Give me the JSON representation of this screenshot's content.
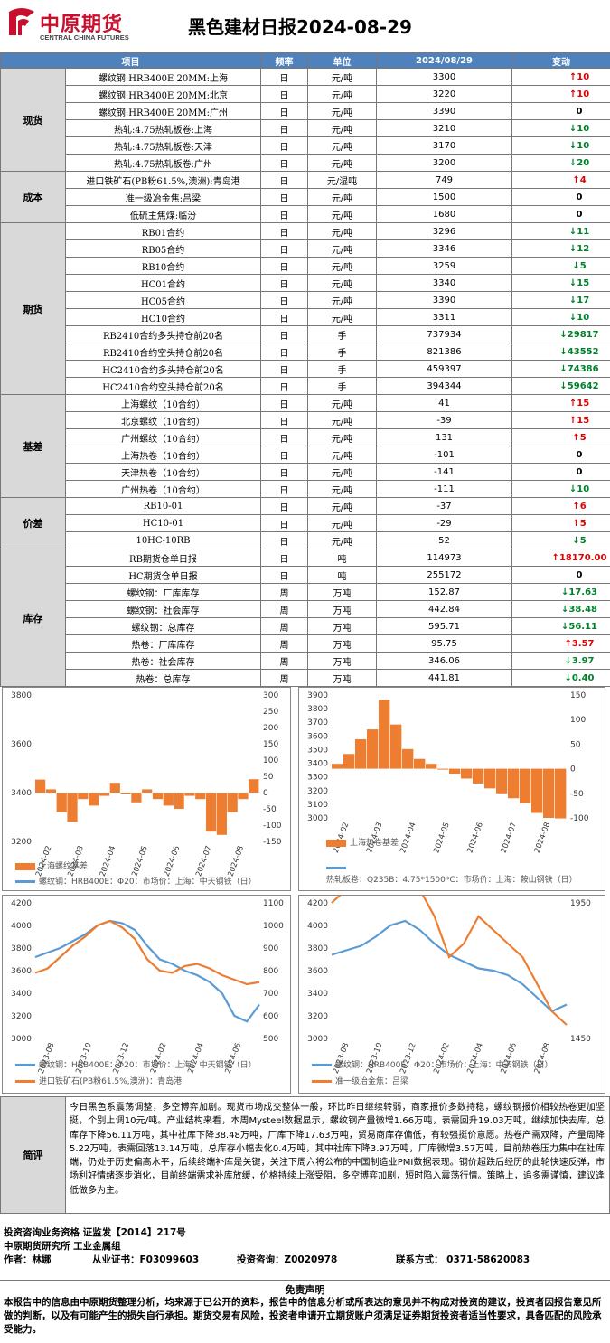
{
  "header": {
    "logo_cn": "中原期货",
    "logo_en": "CENTRAL CHINA FUTURES",
    "title": "黑色建材日报2024-08-29"
  },
  "columns": [
    "项目",
    "频率",
    "单位",
    "2024/08/29",
    "变动"
  ],
  "groups": [
    {
      "cat": "现货",
      "rows": [
        {
          "item": "螺纹钢:HRB400E 20MM:上海",
          "freq": "日",
          "unit": "元/吨",
          "value": "3300",
          "dir": "up",
          "chg": "10"
        },
        {
          "item": "螺纹钢:HRB400E 20MM:北京",
          "freq": "日",
          "unit": "元/吨",
          "value": "3220",
          "dir": "up",
          "chg": "10"
        },
        {
          "item": "螺纹钢:HRB400E 20MM:广州",
          "freq": "日",
          "unit": "元/吨",
          "value": "3390",
          "dir": "none",
          "chg": "0"
        },
        {
          "item": "热轧:4.75热轧板卷:上海",
          "freq": "日",
          "unit": "元/吨",
          "value": "3210",
          "dir": "dn",
          "chg": "10"
        },
        {
          "item": "热轧:4.75热轧板卷:天津",
          "freq": "日",
          "unit": "元/吨",
          "value": "3170",
          "dir": "dn",
          "chg": "10"
        },
        {
          "item": "热轧:4.75热轧板卷:广州",
          "freq": "日",
          "unit": "元/吨",
          "value": "3200",
          "dir": "dn",
          "chg": "20"
        }
      ]
    },
    {
      "cat": "成本",
      "rows": [
        {
          "item": "进口铁矿石(PB粉61.5%,澳洲):青岛港",
          "freq": "日",
          "unit": "元/湿吨",
          "value": "749",
          "dir": "up",
          "chg": "4"
        },
        {
          "item": "准一级冶金焦:吕梁",
          "freq": "日",
          "unit": "元/吨",
          "value": "1500",
          "dir": "none",
          "chg": "0"
        },
        {
          "item": "低硫主焦煤:临汾",
          "freq": "日",
          "unit": "元/吨",
          "value": "1680",
          "dir": "none",
          "chg": "0"
        }
      ]
    },
    {
      "cat": "期货",
      "rows": [
        {
          "item": "RB01合约",
          "freq": "日",
          "unit": "元/吨",
          "value": "3296",
          "dir": "dn",
          "chg": "11"
        },
        {
          "item": "RB05合约",
          "freq": "日",
          "unit": "元/吨",
          "value": "3346",
          "dir": "dn",
          "chg": "12"
        },
        {
          "item": "RB10合约",
          "freq": "日",
          "unit": "元/吨",
          "value": "3259",
          "dir": "dn",
          "chg": "5"
        },
        {
          "item": "HC01合约",
          "freq": "日",
          "unit": "元/吨",
          "value": "3340",
          "dir": "dn",
          "chg": "15"
        },
        {
          "item": "HC05合约",
          "freq": "日",
          "unit": "元/吨",
          "value": "3390",
          "dir": "dn",
          "chg": "17"
        },
        {
          "item": "HC10合约",
          "freq": "日",
          "unit": "元/吨",
          "value": "3311",
          "dir": "dn",
          "chg": "10"
        },
        {
          "item": "RB2410合约多头持仓前20名",
          "freq": "日",
          "unit": "手",
          "value": "737934",
          "dir": "dn",
          "chg": "29817"
        },
        {
          "item": "RB2410合约空头持仓前20名",
          "freq": "日",
          "unit": "手",
          "value": "821386",
          "dir": "dn",
          "chg": "43552"
        },
        {
          "item": "HC2410合约多头持仓前20名",
          "freq": "日",
          "unit": "手",
          "value": "459397",
          "dir": "dn",
          "chg": "74386"
        },
        {
          "item": "HC2410合约空头持仓前20名",
          "freq": "日",
          "unit": "手",
          "value": "394344",
          "dir": "dn",
          "chg": "59642"
        }
      ]
    },
    {
      "cat": "基差",
      "rows": [
        {
          "item": "上海螺纹（10合约）",
          "freq": "日",
          "unit": "元/吨",
          "value": "41",
          "dir": "up",
          "chg": "15"
        },
        {
          "item": "北京螺纹（10合约）",
          "freq": "日",
          "unit": "元/吨",
          "value": "-39",
          "dir": "up",
          "chg": "15"
        },
        {
          "item": "广州螺纹（10合约）",
          "freq": "日",
          "unit": "元/吨",
          "value": "131",
          "dir": "up",
          "chg": "5"
        },
        {
          "item": "上海热卷（10合约）",
          "freq": "日",
          "unit": "元/吨",
          "value": "-101",
          "dir": "none",
          "chg": "0"
        },
        {
          "item": "天津热卷（10合约）",
          "freq": "日",
          "unit": "元/吨",
          "value": "-141",
          "dir": "none",
          "chg": "0"
        },
        {
          "item": "广州热卷（10合约）",
          "freq": "日",
          "unit": "元/吨",
          "value": "-111",
          "dir": "dn",
          "chg": "10"
        }
      ]
    },
    {
      "cat": "价差",
      "rows": [
        {
          "item": "RB10-01",
          "freq": "日",
          "unit": "元/吨",
          "value": "-37",
          "dir": "up",
          "chg": "6"
        },
        {
          "item": "HC10-01",
          "freq": "日",
          "unit": "元/吨",
          "value": "-29",
          "dir": "up",
          "chg": "5"
        },
        {
          "item": "10HC-10RB",
          "freq": "日",
          "unit": "元/吨",
          "value": "52",
          "dir": "dn",
          "chg": "5"
        }
      ]
    },
    {
      "cat": "库存",
      "rows": [
        {
          "item": "RB期货仓单日报",
          "freq": "日",
          "unit": "吨",
          "value": "114973",
          "dir": "up",
          "chg": "18170.00"
        },
        {
          "item": "HC期货仓单日报",
          "freq": "日",
          "unit": "吨",
          "value": "255172",
          "dir": "none",
          "chg": "0"
        },
        {
          "item": "螺纹钢：厂库库存",
          "freq": "周",
          "unit": "万吨",
          "value": "152.87",
          "dir": "dn",
          "chg": "17.63"
        },
        {
          "item": "螺纹钢：社会库存",
          "freq": "周",
          "unit": "万吨",
          "value": "442.84",
          "dir": "dn",
          "chg": "38.48"
        },
        {
          "item": "螺纹钢：总库存",
          "freq": "周",
          "unit": "万吨",
          "value": "595.71",
          "dir": "dn",
          "chg": "56.11"
        },
        {
          "item": "热卷：厂库库存",
          "freq": "周",
          "unit": "万吨",
          "value": "95.75",
          "dir": "up",
          "chg": "3.57"
        },
        {
          "item": "热卷：社会库存",
          "freq": "周",
          "unit": "万吨",
          "value": "346.06",
          "dir": "dn",
          "chg": "3.97"
        },
        {
          "item": "热卷：总库存",
          "freq": "周",
          "unit": "万吨",
          "value": "441.81",
          "dir": "dn",
          "chg": "0.40"
        }
      ]
    }
  ],
  "chart_data": [
    {
      "type": "line",
      "left_ticks": [
        "3800",
        "3600",
        "3400",
        "3200"
      ],
      "right_ticks": [
        "300",
        "250",
        "200",
        "150",
        "100",
        "50",
        "0",
        "-50",
        "-100",
        "-150"
      ],
      "x_ticks": [
        "2024-02",
        "2024-03",
        "2024-04",
        "2024-05",
        "2024-06",
        "2024-07",
        "2024-08"
      ],
      "series": [
        {
          "name": "上海螺纹基差",
          "kind": "bar",
          "color": "#ed7d31",
          "values": [
            40,
            10,
            -60,
            -90,
            -20,
            -40,
            -10,
            30,
            0,
            -30,
            10,
            -20,
            -40,
            -50,
            -10,
            -20,
            -120,
            -130,
            -60,
            -20,
            41
          ]
        },
        {
          "name": "螺纹钢：HRB400E：Φ20：市场价：上海：中天钢铁（日）",
          "kind": "line",
          "color": "#5b9bd5",
          "values": [
            3800,
            3780,
            3720,
            3640,
            3580,
            3560,
            3620,
            3600,
            3560,
            3560,
            3540,
            3560,
            3640,
            3600,
            3540,
            3480,
            3300,
            3200,
            3120,
            3180,
            3300
          ]
        }
      ]
    },
    {
      "type": "line",
      "left_ticks": [
        "3900",
        "3800",
        "3700",
        "3600",
        "3500",
        "3400",
        "3300",
        "3200",
        "3100",
        "3000"
      ],
      "right_ticks": [
        "150",
        "100",
        "50",
        "0",
        "-50",
        "-100"
      ],
      "x_ticks": [
        "2024-02",
        "2024-03",
        "2024-04",
        "2024-05",
        "2024-06",
        "2024-07",
        "2024-08"
      ],
      "series": [
        {
          "name": "上海热卷基差",
          "kind": "bar",
          "color": "#ed7d31",
          "values": [
            10,
            30,
            60,
            80,
            140,
            90,
            40,
            20,
            10,
            0,
            -10,
            -20,
            -30,
            -40,
            -50,
            -60,
            -70,
            -90,
            -100,
            -101
          ]
        },
        {
          "name": "热轧板卷：Q235B：4.75*1500*C：市场价：上海：鞍山钢铁（日）",
          "kind": "line",
          "color": "#5b9bd5",
          "values": [
            3880,
            3860,
            3820,
            3790,
            3760,
            3770,
            3740,
            3720,
            3700,
            3680,
            3660,
            3640,
            3700,
            3660,
            3600,
            3520,
            3380,
            3250,
            3150,
            3210
          ]
        }
      ]
    },
    {
      "type": "line",
      "left_ticks": [
        "4200",
        "4000",
        "3800",
        "3600",
        "3400",
        "3200",
        "3000"
      ],
      "right_ticks": [
        "1100",
        "1000",
        "900",
        "800",
        "700",
        "600",
        "500"
      ],
      "x_ticks": [
        "2023-08",
        "2023-10",
        "2023-12",
        "2024-02",
        "2024-04",
        "2024-06"
      ],
      "series": [
        {
          "name": "螺纹钢：HRB400E：Φ20：市场价：上海：中天钢铁（日）",
          "kind": "line",
          "color": "#5b9bd5",
          "values": [
            3720,
            3760,
            3800,
            3860,
            3920,
            4000,
            4040,
            4020,
            3960,
            3820,
            3700,
            3660,
            3600,
            3560,
            3500,
            3400,
            3200,
            3150,
            3300
          ]
        },
        {
          "name": "进口铁矿石(PB粉61.5%,澳洲)：青岛港",
          "kind": "line",
          "color": "#ed7d31",
          "values": [
            790,
            810,
            860,
            910,
            950,
            1000,
            1020,
            990,
            940,
            850,
            800,
            790,
            820,
            830,
            810,
            780,
            760,
            740,
            749
          ]
        }
      ]
    },
    {
      "type": "line",
      "left_ticks": [
        "4200",
        "4000",
        "3800",
        "3600",
        "3400",
        "3200",
        "3000"
      ],
      "right_ticks": [
        "1950",
        "1450"
      ],
      "x_ticks": [
        "2023-08",
        "2023-10",
        "2023-12",
        "2024-02",
        "2024-04",
        "2024-06",
        "2024-08"
      ],
      "series": [
        {
          "name": "螺纹钢：HRB400E：Φ20：市场价：上海：中天钢铁（日）",
          "kind": "line",
          "color": "#5b9bd5",
          "values": [
            3740,
            3780,
            3820,
            3900,
            4000,
            4040,
            3960,
            3840,
            3740,
            3680,
            3620,
            3600,
            3560,
            3480,
            3360,
            3240,
            3300
          ]
        },
        {
          "name": "准一级冶金焦：吕梁",
          "kind": "line",
          "color": "#ed7d31",
          "values": [
            1950,
            2000,
            2100,
            2200,
            2200,
            2100,
            2000,
            1900,
            1750,
            1800,
            1900,
            1850,
            1800,
            1750,
            1650,
            1550,
            1500
          ]
        }
      ]
    }
  ],
  "review": {
    "label": "简评",
    "text": "今日黑色系震荡调整，多空博弈加剧。现货市场成交整体一般，环比昨日继续转弱，商家报价多数持稳，螺纹钢报价相较热卷更加坚挺，个别上调10元/吨。产业结构来看，本周Mysteel数据显示，螺纹钢产量微增1.66万吨，表需回升19.03万吨，继续加快去库，总库存下降56.11万吨，其中社库下降38.48万吨，厂库下降17.63万吨，贸易商库存偏低，有较强挺价意愿。热卷产需双降，产量周降5.22万吨，表需回落13.14万吨，总库存小幅去化0.4万吨，其中社库下降3.97万吨，厂库微增3.57万吨，目前热卷压力集中在社库端，仍处于历史偏高水平，后续终端补库是关键，关注下周六将公布的中国制造业PMI数据表现。钢价超跌后经历的此轮快速反弹，市场利好情绪逐步消化，目前终端需求补库放缓，价格持续上涨受阻，多空博弈加剧，短时陷入震荡行情。策略上，追多需谨慎，建议逢低做多为主。"
  },
  "footer": {
    "qual": "投资咨询业务资格  证监发【2014】217号",
    "org": "中原期货研究所    工业金属组",
    "author": "作者：林娜",
    "cert": "从业证书：F03099603",
    "advisor": "投资咨询：Z0020978",
    "contact": "联系方式：  0371-58620083"
  },
  "disclaimer": {
    "head": "免责声明",
    "body": "本报告中的信息由中原期货整理分析，均来源于已公开的资料，报告中的信息分析或所表达的意见并不构成对投资的建议，投资者因报告意见所做的判断，以及有可能产生的损失自行承担。期货交易有风险，投资者申请开立期货账户须满足证券期货投资者适当性要求，具备匹配的风险承受能力。"
  },
  "colors": {
    "header_blue": "#4f81bd",
    "up": "#e00000",
    "down": "#00802b",
    "bar": "#ed7d31",
    "line": "#5b9bd5"
  }
}
